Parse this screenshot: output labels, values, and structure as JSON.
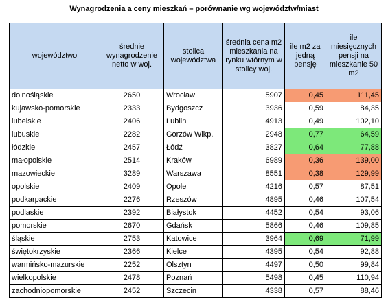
{
  "title": "Wynagrodzenia a ceny mieszkań – porównanie wg województw/miast",
  "headers": [
    "województwo",
    "średnie wynagrodzenie netto w woj.",
    "stolica województwa",
    "średnia cena m2 mieszkania na rynku wtórnym w stolicy woj.",
    "ile m2 za jedną pensję",
    "ile miesięcznych pensji na mieszkanie 50 m2"
  ],
  "highlight_colors": {
    "high": "#f79b73",
    "low": "#7de87a"
  },
  "rows": [
    {
      "woj": "dolnośląskie",
      "pensja": "2650",
      "stolica": "Wrocław",
      "cena": "5907",
      "m2": "0,45",
      "pensje50": "111,45",
      "hl": "orange"
    },
    {
      "woj": "kujawsko-pomorskie",
      "pensja": "2333",
      "stolica": "Bydgoszcz",
      "cena": "3936",
      "m2": "0,59",
      "pensje50": "84,35",
      "hl": ""
    },
    {
      "woj": "lubelskie",
      "pensja": "2406",
      "stolica": "Lublin",
      "cena": "4913",
      "m2": "0,49",
      "pensje50": "102,10",
      "hl": ""
    },
    {
      "woj": "lubuskie",
      "pensja": "2282",
      "stolica": "Gorzów Wlkp.",
      "cena": "2948",
      "m2": "0,77",
      "pensje50": "64,59",
      "hl": "green"
    },
    {
      "woj": "łódzkie",
      "pensja": "2457",
      "stolica": "Łódź",
      "cena": "3827",
      "m2": "0,64",
      "pensje50": "77,88",
      "hl": "green"
    },
    {
      "woj": "małopolskie",
      "pensja": "2514",
      "stolica": "Kraków",
      "cena": "6989",
      "m2": "0,36",
      "pensje50": "139,00",
      "hl": "orange"
    },
    {
      "woj": "mazowieckie",
      "pensja": "3289",
      "stolica": "Warszawa",
      "cena": "8551",
      "m2": "0,38",
      "pensje50": "129,99",
      "hl": "orange"
    },
    {
      "woj": "opolskie",
      "pensja": "2409",
      "stolica": "Opole",
      "cena": "4216",
      "m2": "0,57",
      "pensje50": "87,51",
      "hl": ""
    },
    {
      "woj": "podkarpackie",
      "pensja": "2276",
      "stolica": "Rzeszów",
      "cena": "4895",
      "m2": "0,46",
      "pensje50": "107,54",
      "hl": ""
    },
    {
      "woj": "podlaskie",
      "pensja": "2392",
      "stolica": "Białystok",
      "cena": "4452",
      "m2": "0,54",
      "pensje50": "93,06",
      "hl": ""
    },
    {
      "woj": "pomorskie",
      "pensja": "2670",
      "stolica": "Gdańsk",
      "cena": "5866",
      "m2": "0,46",
      "pensje50": "109,85",
      "hl": ""
    },
    {
      "woj": "śląskie",
      "pensja": "2753",
      "stolica": "Katowice",
      "cena": "3964",
      "m2": "0,69",
      "pensje50": "71,99",
      "hl": "green"
    },
    {
      "woj": "świętokrzyskie",
      "pensja": "2366",
      "stolica": "Kielce",
      "cena": "4395",
      "m2": "0,54",
      "pensje50": "92,88",
      "hl": ""
    },
    {
      "woj": "warmińsko-mazurskie",
      "pensja": "2252",
      "stolica": "Olsztyn",
      "cena": "4497",
      "m2": "0,50",
      "pensje50": "99,84",
      "hl": ""
    },
    {
      "woj": "wielkopolskie",
      "pensja": "2478",
      "stolica": "Poznań",
      "cena": "5498",
      "m2": "0,45",
      "pensje50": "110,94",
      "hl": ""
    },
    {
      "woj": "zachodniopomorskie",
      "pensja": "2452",
      "stolica": "Szczecin",
      "cena": "4338",
      "m2": "0,57",
      "pensje50": "88,46",
      "hl": ""
    }
  ]
}
